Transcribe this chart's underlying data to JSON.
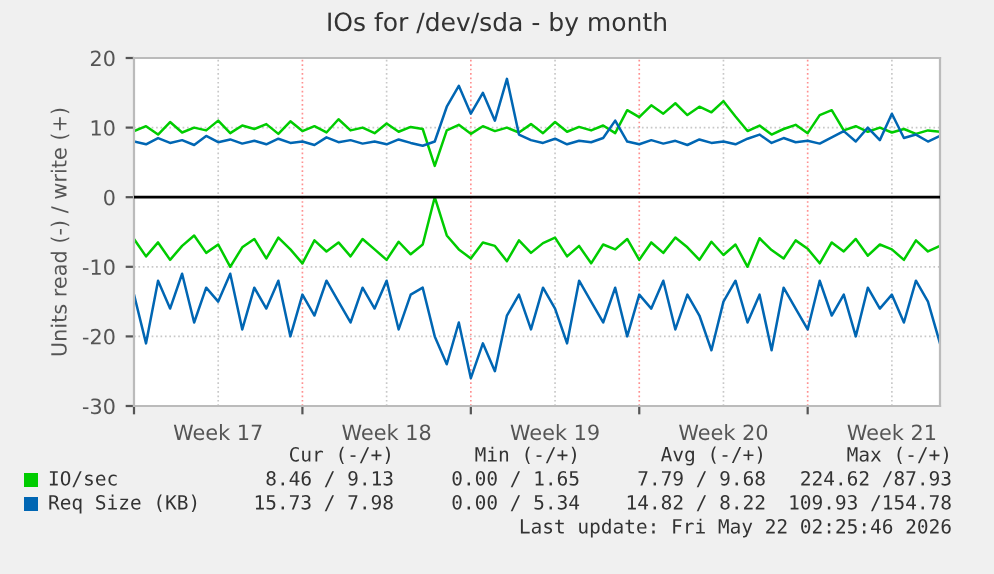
{
  "chart_data": {
    "type": "line",
    "title": "IOs for /dev/sda - by month",
    "ylabel": "Units read (-) / write (+)",
    "categories": [
      null,
      null,
      null,
      null,
      null,
      null,
      null,
      "Week 17",
      null,
      null,
      null,
      null,
      null,
      null,
      null,
      null,
      null,
      null,
      null,
      null,
      null,
      "Week 18",
      null,
      null,
      null,
      null,
      null,
      null,
      null,
      null,
      null,
      null,
      null,
      null,
      null,
      "Week 19",
      null,
      null,
      null,
      null,
      null,
      null,
      null,
      null,
      null,
      null,
      null,
      null,
      null,
      "Week 20",
      null,
      null,
      null,
      null,
      null,
      null,
      null,
      null,
      null,
      null,
      null,
      null,
      null,
      "Week 21",
      null,
      null,
      null,
      null
    ],
    "ylim": [
      -30,
      20
    ],
    "yticks": [
      -30,
      -20,
      -10,
      0,
      10,
      20
    ],
    "grid": true,
    "legend": "bottom",
    "ref_lines": [
      {
        "axis": "y",
        "value": 0,
        "color": "#000000"
      }
    ],
    "series": [
      {
        "name": "IO/sec",
        "color": "#00cc00",
        "values": [
          9.5,
          10.2,
          9,
          10.8,
          9.3,
          10,
          9.6,
          11,
          9.2,
          10.3,
          9.8,
          10.5,
          9.1,
          10.9,
          9.5,
          10.2,
          9.3,
          11.2,
          9.6,
          10,
          9.2,
          10.6,
          9.4,
          10.1,
          9.8,
          4.5,
          9.6,
          10.4,
          9.1,
          10.2,
          9.5,
          10,
          9.3,
          10.5,
          9.2,
          10.8,
          9.4,
          10.1,
          9.6,
          10.3,
          9.2,
          12.5,
          11.5,
          13.2,
          12,
          13.5,
          11.8,
          13,
          12.2,
          13.8,
          11.6,
          9.5,
          10.3,
          9,
          9.8,
          10.4,
          9.2,
          11.8,
          12.5,
          9.6,
          10.2,
          9.4,
          10,
          9.3,
          9.8,
          9.1,
          9.6,
          9.4
        ]
      },
      {
        "color": "#00cc00",
        "values": [
          -6,
          -8.5,
          -6.5,
          -9,
          -7,
          -5.5,
          -8,
          -6.8,
          -10,
          -7.2,
          -6,
          -8.8,
          -5.8,
          -7.5,
          -9.5,
          -6.2,
          -7.8,
          -6.5,
          -8.5,
          -6,
          -7.5,
          -9,
          -6.4,
          -8.2,
          -6.8,
          0,
          -5.5,
          -7.5,
          -8.8,
          -6.5,
          -7,
          -9.2,
          -6.2,
          -8,
          -6.6,
          -5.8,
          -8.5,
          -7,
          -9.5,
          -6.8,
          -7.5,
          -6,
          -9,
          -6.5,
          -8,
          -5.8,
          -7.2,
          -9,
          -6.4,
          -8.3,
          -6.8,
          -10,
          -5.9,
          -7.6,
          -8.8,
          -6.2,
          -7.4,
          -9.5,
          -6.5,
          -7.8,
          -6,
          -8.4,
          -6.8,
          -7.5,
          -9,
          -6.2,
          -7.8,
          -7
        ]
      },
      {
        "name": "Req Size (KB)",
        "color": "#0066b3",
        "values": [
          8,
          7.6,
          8.5,
          7.8,
          8.2,
          7.5,
          8.8,
          7.9,
          8.3,
          7.7,
          8.1,
          7.6,
          8.4,
          7.8,
          8,
          7.5,
          8.6,
          7.9,
          8.2,
          7.7,
          8,
          7.6,
          8.3,
          7.8,
          7.4,
          8,
          13,
          16,
          12,
          15,
          11,
          17,
          9,
          8.2,
          7.8,
          8.4,
          7.6,
          8.1,
          7.9,
          8.5,
          11,
          8,
          7.6,
          8.2,
          7.7,
          8.1,
          7.5,
          8.3,
          7.8,
          8,
          7.6,
          8.4,
          9,
          7.8,
          8.5,
          7.9,
          8.1,
          7.7,
          8.6,
          9.5,
          8,
          10,
          8.2,
          12,
          8.5,
          9,
          8,
          8.8
        ]
      },
      {
        "color": "#0066b3",
        "values": [
          -14,
          -21,
          -12,
          -16,
          -11,
          -18,
          -13,
          -15,
          -11,
          -19,
          -13,
          -16,
          -12,
          -20,
          -14,
          -17,
          -12,
          -15,
          -18,
          -13,
          -16,
          -12,
          -19,
          -14,
          -13,
          -20,
          -24,
          -18,
          -26,
          -21,
          -25,
          -17,
          -14,
          -19,
          -13,
          -16,
          -21,
          -12,
          -15,
          -18,
          -13,
          -20,
          -14,
          -16,
          -12,
          -19,
          -14,
          -17,
          -22,
          -15,
          -12,
          -18,
          -14,
          -22,
          -13,
          -16,
          -19,
          -12,
          -17,
          -14,
          -20,
          -13,
          -16,
          -14,
          -18,
          -12,
          -15,
          -21
        ]
      }
    ],
    "annotations": [
      "Cur (-/+)",
      "Min (-/+)",
      "Avg (-/+)",
      "Max (-/+)",
      "8.46 / 9.13",
      "0.00 / 1.65",
      "7.79 / 9.68",
      "224.62 /87.93",
      "15.73 / 7.98",
      "0.00 / 5.34",
      "14.82 / 8.22",
      "109.93 /154.78",
      "Last update: Fri May 22 02:25:46 2026"
    ]
  }
}
